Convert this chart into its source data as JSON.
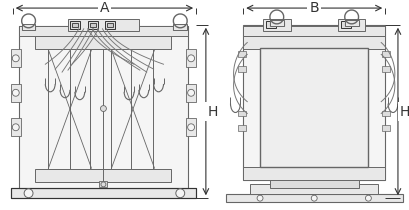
{
  "bg_color": "#ffffff",
  "line_color": "#666666",
  "line_color_dark": "#333333",
  "dim_color": "#333333",
  "label_A": "A",
  "label_B": "B",
  "label_H": "H",
  "label_fontsize": 10,
  "fig_width": 4.1,
  "fig_height": 2.1,
  "dpi": 100,
  "lc_fill": "#f5f5f5",
  "lc_fill2": "#e8e8e8",
  "lc_fill3": "#dddddd"
}
